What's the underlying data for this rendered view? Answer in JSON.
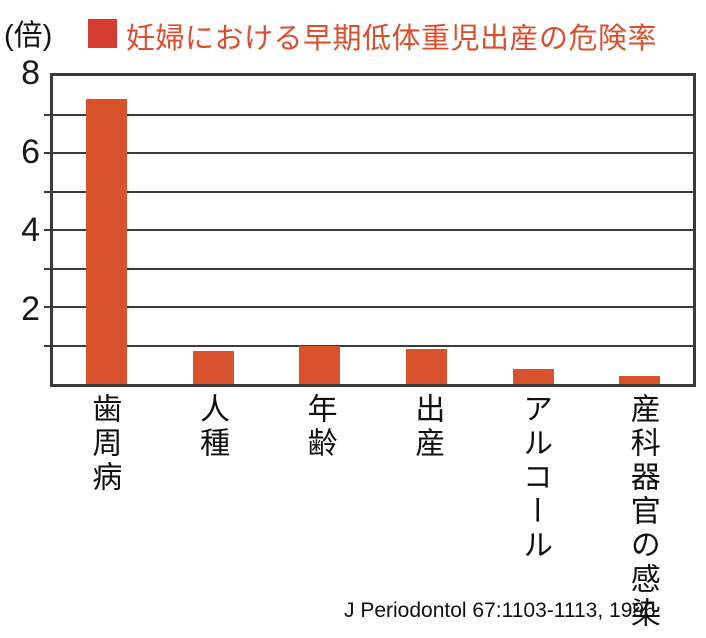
{
  "header": {
    "unit_label": "(倍)",
    "title": "妊婦における早期低体重児出産の危険率"
  },
  "colors": {
    "bar": "#d9522e",
    "legend_swatch": "#d73c30",
    "title_text": "#dd4e2c",
    "axis": "#3b3b3b",
    "text": "#111111"
  },
  "chart_data": {
    "type": "bar",
    "title": "妊婦における早期低体重児出産の危険率",
    "ylabel": "(倍)",
    "xlabel": "",
    "categories": [
      "歯周病",
      "人種",
      "年齢",
      "出産",
      "アルコール",
      "産科器官の感染"
    ],
    "values": [
      7.4,
      0.85,
      1.0,
      0.9,
      0.4,
      0.2
    ],
    "ylim": [
      0,
      8
    ],
    "ytick_labels": [
      8,
      6,
      4,
      2
    ],
    "gridline_values": [
      1,
      2,
      3,
      4,
      5,
      6,
      7
    ],
    "grid": "horizontal",
    "legend_position": "top",
    "bar_color": "#d9522e"
  },
  "footer": {
    "citation": "J Periodontol 67:1103-1113, 1996."
  }
}
